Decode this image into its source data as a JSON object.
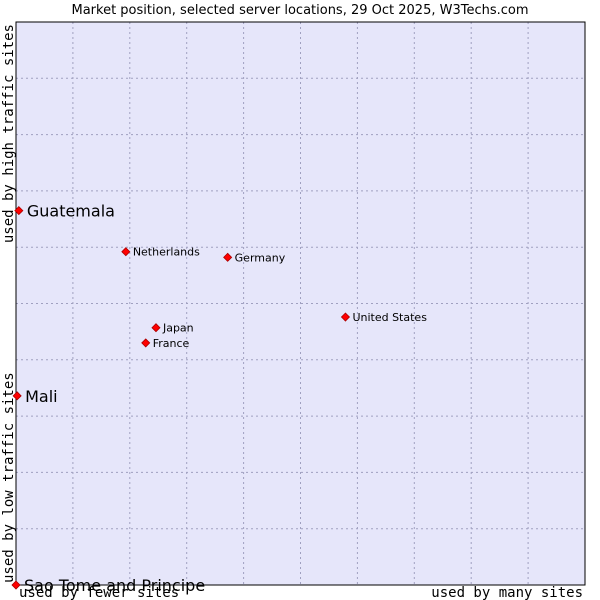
{
  "chart_data": {
    "type": "scatter",
    "title": "Market position, selected server locations, 29 Oct 2025, W3Techs.com",
    "xlabel_left": "used by fewer sites",
    "xlabel_right": "used by many sites",
    "ylabel_top": "used by high traffic sites",
    "ylabel_bottom": "used by low traffic sites",
    "xlim": [
      0,
      100
    ],
    "ylim": [
      0,
      100
    ],
    "grid": true,
    "colors": {
      "plot_bg": "#e6e6fa",
      "grid": "#a0a0c0",
      "point": "#ff0000",
      "point_stroke": "#aa0000"
    },
    "points": [
      {
        "label": "Guatemala",
        "x": 0.5,
        "y": 66.5,
        "emphasis": true
      },
      {
        "label": "Netherlands",
        "x": 19.3,
        "y": 59.2,
        "emphasis": false
      },
      {
        "label": "Germany",
        "x": 37.2,
        "y": 58.2,
        "emphasis": false
      },
      {
        "label": "United States",
        "x": 57.9,
        "y": 47.6,
        "emphasis": false
      },
      {
        "label": "Japan",
        "x": 24.6,
        "y": 45.7,
        "emphasis": false
      },
      {
        "label": "France",
        "x": 22.8,
        "y": 43.0,
        "emphasis": false
      },
      {
        "label": "Mali",
        "x": 0.2,
        "y": 33.6,
        "emphasis": true
      },
      {
        "label": "Sao Tome and Principe",
        "x": 0.0,
        "y": 0.0,
        "emphasis": true
      }
    ]
  }
}
